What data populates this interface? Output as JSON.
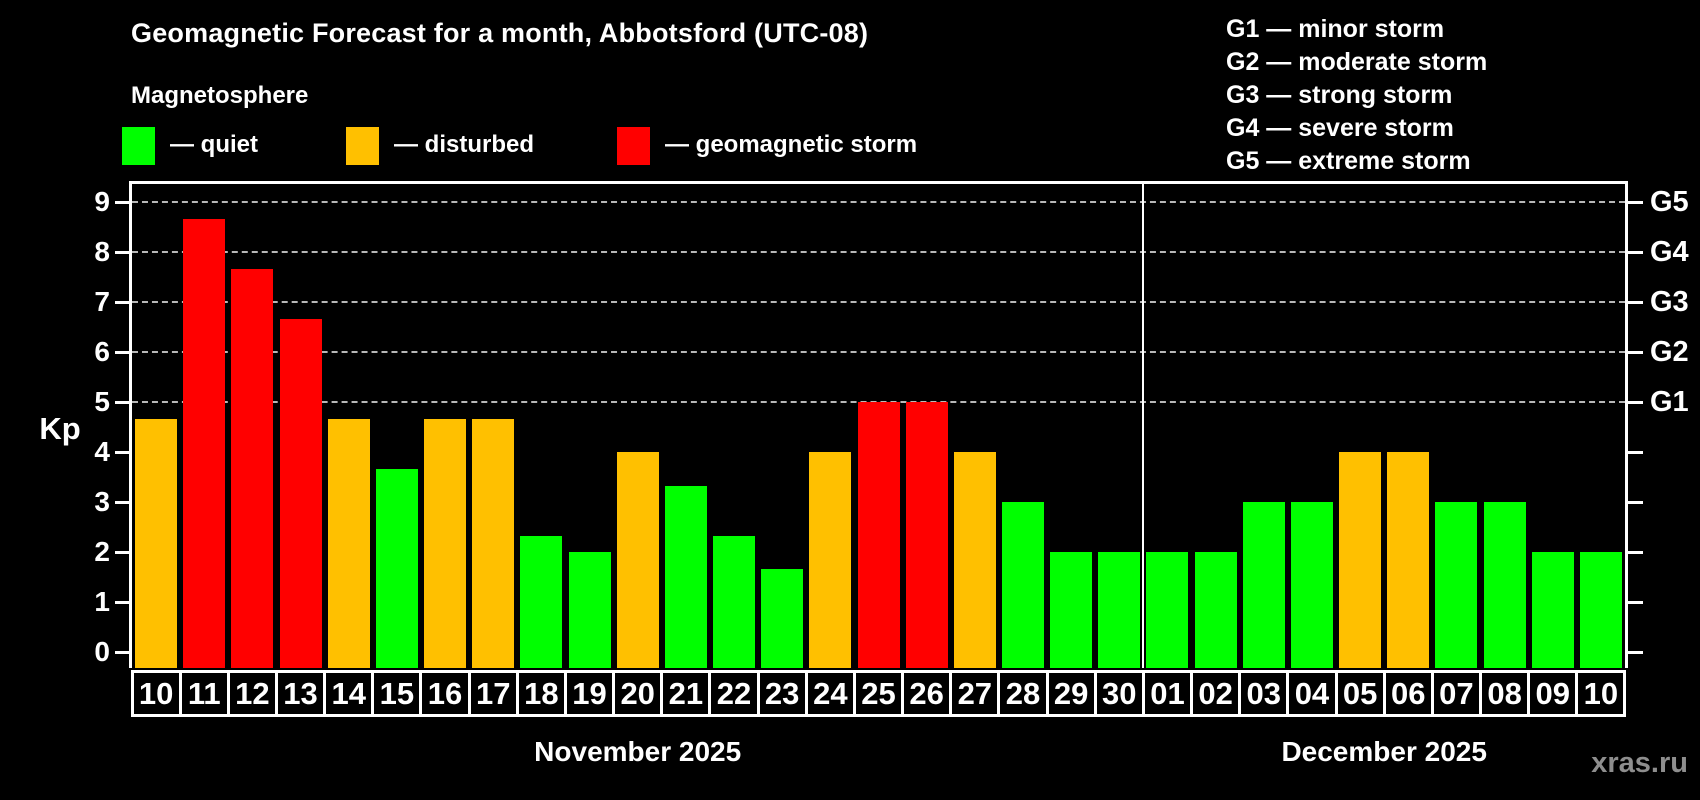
{
  "header": {
    "title": "Geomagnetic Forecast for a month, Abbotsford (UTC-08)",
    "subtitle": "Magnetosphere",
    "legend": [
      {
        "key": "quiet",
        "label": "— quiet",
        "color": "#00ff00"
      },
      {
        "key": "disturbed",
        "label": "— disturbed",
        "color": "#ffc000"
      },
      {
        "key": "storm",
        "label": "— geomagnetic storm",
        "color": "#ff0000"
      }
    ],
    "g_scale_legend": [
      "G1 — minor storm",
      "G2 — moderate storm",
      "G3 — strong storm",
      "G4 — severe storm",
      "G5 — extreme storm"
    ]
  },
  "chart_data": {
    "type": "bar",
    "title": "Geomagnetic Forecast for a month, Abbotsford (UTC-08)",
    "ylabel": "Kp",
    "ylim": [
      0,
      9.4
    ],
    "yticks": [
      0,
      1,
      2,
      3,
      4,
      5,
      6,
      7,
      8,
      9
    ],
    "gridlines_at_kp": [
      5,
      6,
      7,
      8,
      9
    ],
    "grid_style": "dashed",
    "legend_position": "top",
    "right_axis": [
      {
        "kp": 5,
        "label": "G1"
      },
      {
        "kp": 6,
        "label": "G2"
      },
      {
        "kp": 7,
        "label": "G3"
      },
      {
        "kp": 8,
        "label": "G4"
      },
      {
        "kp": 9,
        "label": "G5"
      }
    ],
    "level_colors": {
      "quiet": "#00ff00",
      "disturbed": "#ffc000",
      "storm": "#ff0000"
    },
    "months": [
      {
        "label": "November 2025",
        "count": 21
      },
      {
        "label": "December 2025",
        "count": 10
      }
    ],
    "bars": [
      {
        "day": "10",
        "kp": 4.67,
        "level": "disturbed"
      },
      {
        "day": "11",
        "kp": 8.67,
        "level": "storm"
      },
      {
        "day": "12",
        "kp": 7.67,
        "level": "storm"
      },
      {
        "day": "13",
        "kp": 6.67,
        "level": "storm"
      },
      {
        "day": "14",
        "kp": 4.67,
        "level": "disturbed"
      },
      {
        "day": "15",
        "kp": 3.67,
        "level": "quiet"
      },
      {
        "day": "16",
        "kp": 4.67,
        "level": "disturbed"
      },
      {
        "day": "17",
        "kp": 4.67,
        "level": "disturbed"
      },
      {
        "day": "18",
        "kp": 2.33,
        "level": "quiet"
      },
      {
        "day": "19",
        "kp": 2,
        "level": "quiet"
      },
      {
        "day": "20",
        "kp": 4,
        "level": "disturbed"
      },
      {
        "day": "21",
        "kp": 3.33,
        "level": "quiet"
      },
      {
        "day": "22",
        "kp": 2.33,
        "level": "quiet"
      },
      {
        "day": "23",
        "kp": 1.67,
        "level": "quiet"
      },
      {
        "day": "24",
        "kp": 4,
        "level": "disturbed"
      },
      {
        "day": "25",
        "kp": 5,
        "level": "storm"
      },
      {
        "day": "26",
        "kp": 5,
        "level": "storm"
      },
      {
        "day": "27",
        "kp": 4,
        "level": "disturbed"
      },
      {
        "day": "28",
        "kp": 3,
        "level": "quiet"
      },
      {
        "day": "29",
        "kp": 2,
        "level": "quiet"
      },
      {
        "day": "30",
        "kp": 2,
        "level": "quiet"
      },
      {
        "day": "01",
        "kp": 2,
        "level": "quiet"
      },
      {
        "day": "02",
        "kp": 2,
        "level": "quiet"
      },
      {
        "day": "03",
        "kp": 3,
        "level": "quiet"
      },
      {
        "day": "04",
        "kp": 3,
        "level": "quiet"
      },
      {
        "day": "05",
        "kp": 4,
        "level": "disturbed"
      },
      {
        "day": "06",
        "kp": 4,
        "level": "disturbed"
      },
      {
        "day": "07",
        "kp": 3,
        "level": "quiet"
      },
      {
        "day": "08",
        "kp": 3,
        "level": "quiet"
      },
      {
        "day": "09",
        "kp": 2,
        "level": "quiet"
      },
      {
        "day": "10",
        "kp": 2,
        "level": "quiet"
      }
    ]
  },
  "footer": {
    "watermark": "xras.ru"
  }
}
